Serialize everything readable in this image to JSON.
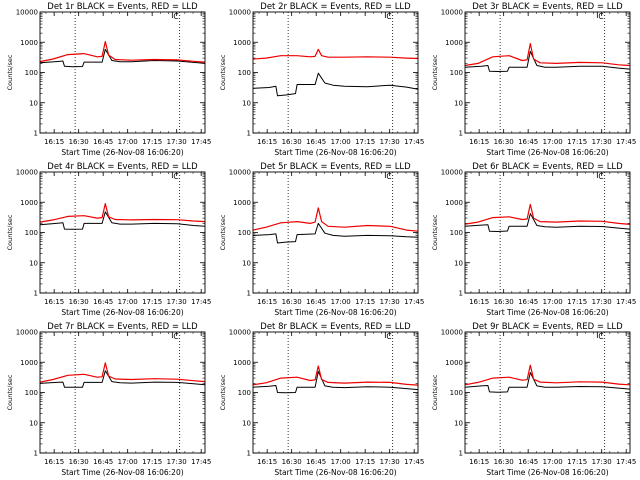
{
  "colors": {
    "events": "#000000",
    "lld": "#ee0000",
    "axis": "#000000",
    "background": "#ffffff"
  },
  "chart_data": [
    {
      "type": "line",
      "title": "Det 1r BLACK = Events, RED = LLD",
      "xlabel": "Start Time (26-Nov-08 16:06:20)",
      "ylabel": "Counts/sec",
      "x_ticks": [
        "16:15",
        "16:30",
        "16:45",
        "17:00",
        "17:15",
        "17:30",
        "17:45"
      ],
      "y_ticks": [
        "1",
        "10",
        "100",
        "1000",
        "10000"
      ],
      "ylim": [
        1,
        10000
      ],
      "yscale": "log",
      "xlim_minutes": [
        0,
        101
      ],
      "dotted_vlines_minutes": [
        21.5,
        85.5
      ],
      "marker_label": "C",
      "marker_minutes": 81,
      "series": [
        {
          "name": "Events",
          "color": "black",
          "x": [
            0,
            10,
            14,
            15,
            20,
            26,
            27,
            38,
            40,
            44,
            49,
            56,
            70,
            84,
            94,
            101
          ],
          "y": [
            210,
            230,
            240,
            160,
            155,
            158,
            220,
            220,
            580,
            250,
            225,
            225,
            250,
            240,
            215,
            200
          ]
        },
        {
          "name": "LLD",
          "color": "red",
          "x": [
            0,
            8,
            17,
            27,
            35,
            38,
            40,
            42,
            46,
            56,
            70,
            84,
            94,
            101
          ],
          "y": [
            230,
            280,
            390,
            420,
            330,
            340,
            1050,
            380,
            270,
            255,
            270,
            260,
            235,
            220
          ]
        }
      ]
    },
    {
      "type": "line",
      "title": "Det 2r BLACK = Events, RED = LLD",
      "xlabel": "Start Time (26-Nov-08 16:06:20)",
      "ylabel": "Counts/sec",
      "x_ticks": [
        "16:15",
        "16:30",
        "16:45",
        "17:00",
        "17:15",
        "17:30",
        "17:45"
      ],
      "y_ticks": [
        "1",
        "10",
        "100",
        "1000",
        "10000"
      ],
      "ylim": [
        1,
        10000
      ],
      "yscale": "log",
      "xlim_minutes": [
        0,
        101
      ],
      "dotted_vlines_minutes": [
        21.5,
        85.5
      ],
      "marker_label": "C",
      "marker_minutes": 81,
      "series": [
        {
          "name": "Events",
          "color": "black",
          "x": [
            0,
            10,
            14,
            15,
            20,
            26,
            27,
            38,
            40,
            44,
            49,
            56,
            70,
            84,
            94,
            101
          ],
          "y": [
            30,
            32,
            35,
            17,
            18,
            20,
            40,
            40,
            95,
            45,
            38,
            35,
            34,
            38,
            33,
            28
          ]
        },
        {
          "name": "LLD",
          "color": "red",
          "x": [
            0,
            8,
            17,
            27,
            35,
            38,
            40,
            42,
            46,
            56,
            70,
            84,
            94,
            101
          ],
          "y": [
            280,
            300,
            360,
            360,
            330,
            340,
            580,
            360,
            320,
            320,
            330,
            320,
            300,
            290
          ]
        }
      ]
    },
    {
      "type": "line",
      "title": "Det 3r BLACK = Events, RED = LLD",
      "xlabel": "Start Time (26-Nov-08 16:06:20)",
      "ylabel": "Counts/sec",
      "x_ticks": [
        "16:15",
        "16:30",
        "16:45",
        "17:00",
        "17:15",
        "17:30",
        "17:45"
      ],
      "y_ticks": [
        "1",
        "10",
        "100",
        "1000",
        "10000"
      ],
      "ylim": [
        1,
        10000
      ],
      "yscale": "log",
      "xlim_minutes": [
        0,
        101
      ],
      "dotted_vlines_minutes": [
        21.5,
        85.5
      ],
      "marker_label": "C",
      "marker_minutes": 81,
      "series": [
        {
          "name": "Events",
          "color": "black",
          "x": [
            0,
            10,
            14,
            15,
            20,
            26,
            27,
            38,
            40,
            44,
            49,
            56,
            70,
            84,
            94,
            101
          ],
          "y": [
            150,
            160,
            170,
            110,
            108,
            110,
            150,
            150,
            500,
            170,
            150,
            148,
            160,
            160,
            140,
            130
          ]
        },
        {
          "name": "LLD",
          "color": "red",
          "x": [
            0,
            8,
            17,
            27,
            35,
            38,
            40,
            42,
            46,
            56,
            70,
            84,
            94,
            101
          ],
          "y": [
            170,
            200,
            330,
            360,
            250,
            260,
            900,
            280,
            210,
            200,
            215,
            210,
            180,
            170
          ]
        }
      ]
    },
    {
      "type": "line",
      "title": "Det 4r BLACK = Events, RED = LLD",
      "xlabel": "Start Time (26-Nov-08 16:06:20)",
      "ylabel": "Counts/sec",
      "x_ticks": [
        "16:15",
        "16:30",
        "16:45",
        "17:00",
        "17:15",
        "17:30",
        "17:45"
      ],
      "y_ticks": [
        "1",
        "10",
        "100",
        "1000",
        "10000"
      ],
      "ylim": [
        1,
        10000
      ],
      "yscale": "log",
      "xlim_minutes": [
        0,
        101
      ],
      "dotted_vlines_minutes": [
        21.5,
        85.5
      ],
      "marker_label": "C",
      "marker_minutes": 81,
      "series": [
        {
          "name": "Events",
          "color": "black",
          "x": [
            0,
            10,
            14,
            15,
            20,
            26,
            27,
            38,
            40,
            44,
            49,
            56,
            70,
            84,
            94,
            101
          ],
          "y": [
            180,
            200,
            210,
            130,
            128,
            130,
            200,
            200,
            480,
            210,
            190,
            190,
            200,
            195,
            170,
            160
          ]
        },
        {
          "name": "LLD",
          "color": "red",
          "x": [
            0,
            8,
            17,
            27,
            35,
            38,
            40,
            42,
            46,
            56,
            70,
            84,
            94,
            101
          ],
          "y": [
            220,
            260,
            340,
            360,
            300,
            310,
            900,
            330,
            270,
            260,
            270,
            265,
            240,
            230
          ]
        }
      ]
    },
    {
      "type": "line",
      "title": "Det 5r BLACK = Events, RED = LLD",
      "xlabel": "Start Time (26-Nov-08 16:06:20)",
      "ylabel": "Counts/sec",
      "x_ticks": [
        "16:15",
        "16:30",
        "16:45",
        "17:00",
        "17:15",
        "17:30",
        "17:45"
      ],
      "y_ticks": [
        "1",
        "10",
        "100",
        "1000",
        "10000"
      ],
      "ylim": [
        1,
        10000
      ],
      "yscale": "log",
      "xlim_minutes": [
        0,
        101
      ],
      "dotted_vlines_minutes": [
        21.5,
        85.5
      ],
      "marker_label": "C",
      "marker_minutes": 81,
      "series": [
        {
          "name": "Events",
          "color": "black",
          "x": [
            0,
            10,
            14,
            15,
            20,
            26,
            27,
            38,
            40,
            44,
            49,
            56,
            70,
            84,
            94,
            101
          ],
          "y": [
            80,
            85,
            90,
            45,
            48,
            50,
            85,
            90,
            200,
            95,
            80,
            75,
            80,
            78,
            72,
            70
          ]
        },
        {
          "name": "LLD",
          "color": "red",
          "x": [
            0,
            8,
            17,
            27,
            35,
            38,
            40,
            42,
            46,
            56,
            70,
            84,
            94,
            101
          ],
          "y": [
            120,
            150,
            210,
            230,
            200,
            220,
            650,
            230,
            160,
            150,
            170,
            160,
            120,
            110
          ]
        }
      ]
    },
    {
      "type": "line",
      "title": "Det 6r BLACK = Events, RED = LLD",
      "xlabel": "Start Time (26-Nov-08 16:06:20)",
      "ylabel": "Counts/sec",
      "x_ticks": [
        "16:15",
        "16:30",
        "16:45",
        "17:00",
        "17:15",
        "17:30",
        "17:45"
      ],
      "y_ticks": [
        "1",
        "10",
        "100",
        "1000",
        "10000"
      ],
      "ylim": [
        1,
        10000
      ],
      "yscale": "log",
      "xlim_minutes": [
        0,
        101
      ],
      "dotted_vlines_minutes": [
        21.5,
        85.5
      ],
      "marker_label": "C",
      "marker_minutes": 81,
      "series": [
        {
          "name": "Events",
          "color": "black",
          "x": [
            0,
            10,
            14,
            15,
            20,
            26,
            27,
            38,
            40,
            44,
            49,
            56,
            70,
            84,
            94,
            101
          ],
          "y": [
            160,
            175,
            180,
            110,
            108,
            112,
            160,
            160,
            420,
            170,
            155,
            150,
            160,
            158,
            140,
            130
          ]
        },
        {
          "name": "LLD",
          "color": "red",
          "x": [
            0,
            8,
            17,
            27,
            35,
            38,
            40,
            42,
            46,
            56,
            70,
            84,
            94,
            101
          ],
          "y": [
            190,
            220,
            310,
            330,
            270,
            280,
            850,
            300,
            230,
            220,
            240,
            235,
            200,
            185
          ]
        }
      ]
    },
    {
      "type": "line",
      "title": "Det 7r BLACK = Events, RED = LLD",
      "xlabel": "Start Time (26-Nov-08 16:06:20)",
      "ylabel": "Counts/sec",
      "x_ticks": [
        "16:15",
        "16:30",
        "16:45",
        "17:00",
        "17:15",
        "17:30",
        "17:45"
      ],
      "y_ticks": [
        "1",
        "10",
        "100",
        "1000",
        "10000"
      ],
      "ylim": [
        1,
        10000
      ],
      "yscale": "log",
      "xlim_minutes": [
        0,
        101
      ],
      "dotted_vlines_minutes": [
        21.5,
        85.5
      ],
      "marker_label": "C",
      "marker_minutes": 81,
      "series": [
        {
          "name": "Events",
          "color": "black",
          "x": [
            0,
            10,
            14,
            15,
            20,
            26,
            27,
            38,
            40,
            44,
            49,
            56,
            70,
            84,
            94,
            101
          ],
          "y": [
            200,
            215,
            220,
            150,
            148,
            150,
            215,
            215,
            520,
            230,
            210,
            205,
            220,
            215,
            195,
            180
          ]
        },
        {
          "name": "LLD",
          "color": "red",
          "x": [
            0,
            8,
            17,
            27,
            35,
            38,
            40,
            42,
            46,
            56,
            70,
            84,
            94,
            101
          ],
          "y": [
            220,
            270,
            370,
            400,
            320,
            330,
            950,
            350,
            280,
            270,
            285,
            275,
            245,
            230
          ]
        }
      ]
    },
    {
      "type": "line",
      "title": "Det 8r BLACK = Events, RED = LLD",
      "xlabel": "Start Time (26-Nov-08 16:06:20)",
      "ylabel": "Counts/sec",
      "x_ticks": [
        "16:15",
        "16:30",
        "16:45",
        "17:00",
        "17:15",
        "17:30",
        "17:45"
      ],
      "y_ticks": [
        "1",
        "10",
        "100",
        "1000",
        "10000"
      ],
      "ylim": [
        1,
        10000
      ],
      "yscale": "log",
      "xlim_minutes": [
        0,
        101
      ],
      "dotted_vlines_minutes": [
        21.5,
        85.5
      ],
      "marker_label": "C",
      "marker_minutes": 81,
      "series": [
        {
          "name": "Events",
          "color": "black",
          "x": [
            0,
            10,
            14,
            15,
            20,
            26,
            27,
            38,
            40,
            44,
            49,
            56,
            70,
            84,
            94,
            101
          ],
          "y": [
            150,
            160,
            170,
            100,
            98,
            100,
            150,
            150,
            500,
            165,
            148,
            145,
            155,
            150,
            135,
            125
          ]
        },
        {
          "name": "LLD",
          "color": "red",
          "x": [
            0,
            8,
            17,
            27,
            35,
            38,
            40,
            42,
            46,
            56,
            70,
            84,
            94,
            101
          ],
          "y": [
            180,
            210,
            300,
            320,
            250,
            260,
            750,
            270,
            215,
            205,
            220,
            215,
            185,
            175
          ]
        }
      ]
    },
    {
      "type": "line",
      "title": "Det 9r BLACK = Events, RED = LLD",
      "xlabel": "Start Time (26-Nov-08 16:06:20)",
      "ylabel": "Counts/sec",
      "x_ticks": [
        "16:15",
        "16:30",
        "16:45",
        "17:00",
        "17:15",
        "17:30",
        "17:45"
      ],
      "y_ticks": [
        "1",
        "10",
        "100",
        "1000",
        "10000"
      ],
      "ylim": [
        1,
        10000
      ],
      "yscale": "log",
      "xlim_minutes": [
        0,
        101
      ],
      "dotted_vlines_minutes": [
        21.5,
        85.5
      ],
      "marker_label": "C",
      "marker_minutes": 81,
      "series": [
        {
          "name": "Events",
          "color": "black",
          "x": [
            0,
            10,
            14,
            15,
            20,
            26,
            27,
            38,
            40,
            44,
            49,
            56,
            70,
            84,
            94,
            101
          ],
          "y": [
            150,
            165,
            170,
            105,
            102,
            105,
            150,
            150,
            460,
            165,
            150,
            148,
            158,
            155,
            140,
            130
          ]
        },
        {
          "name": "LLD",
          "color": "red",
          "x": [
            0,
            8,
            17,
            27,
            35,
            38,
            40,
            42,
            46,
            56,
            70,
            84,
            94,
            101
          ],
          "y": [
            180,
            215,
            300,
            320,
            255,
            265,
            800,
            275,
            220,
            210,
            225,
            220,
            190,
            180
          ]
        }
      ]
    }
  ]
}
